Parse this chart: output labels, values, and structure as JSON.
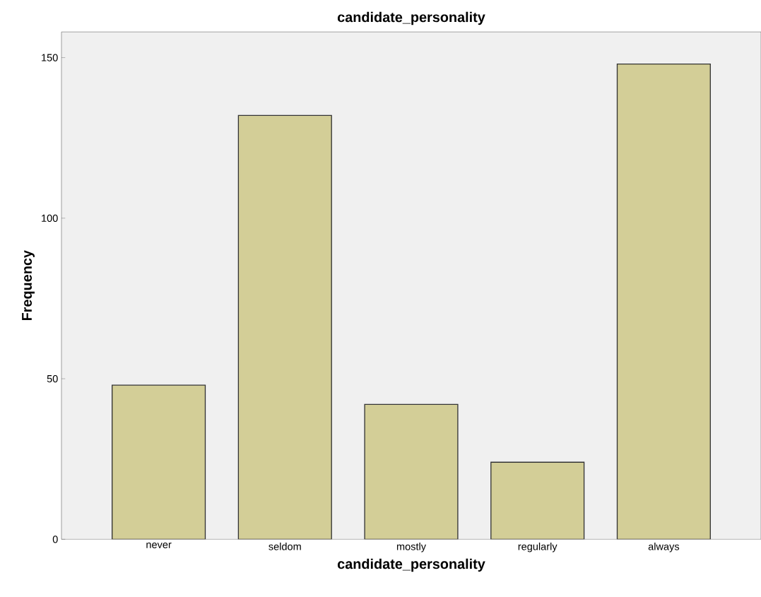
{
  "chart_data": {
    "type": "bar",
    "title": "candidate_personality",
    "xlabel": "candidate_personality",
    "ylabel": "Frequency",
    "categories": [
      "never",
      "seldom",
      "mostly",
      "regularly",
      "always"
    ],
    "values": [
      48,
      132,
      42,
      24,
      148
    ],
    "color": "#d3ce97",
    "ylim": [
      0,
      158
    ],
    "yticks": [
      0,
      50,
      100,
      150
    ],
    "grid": false
  }
}
